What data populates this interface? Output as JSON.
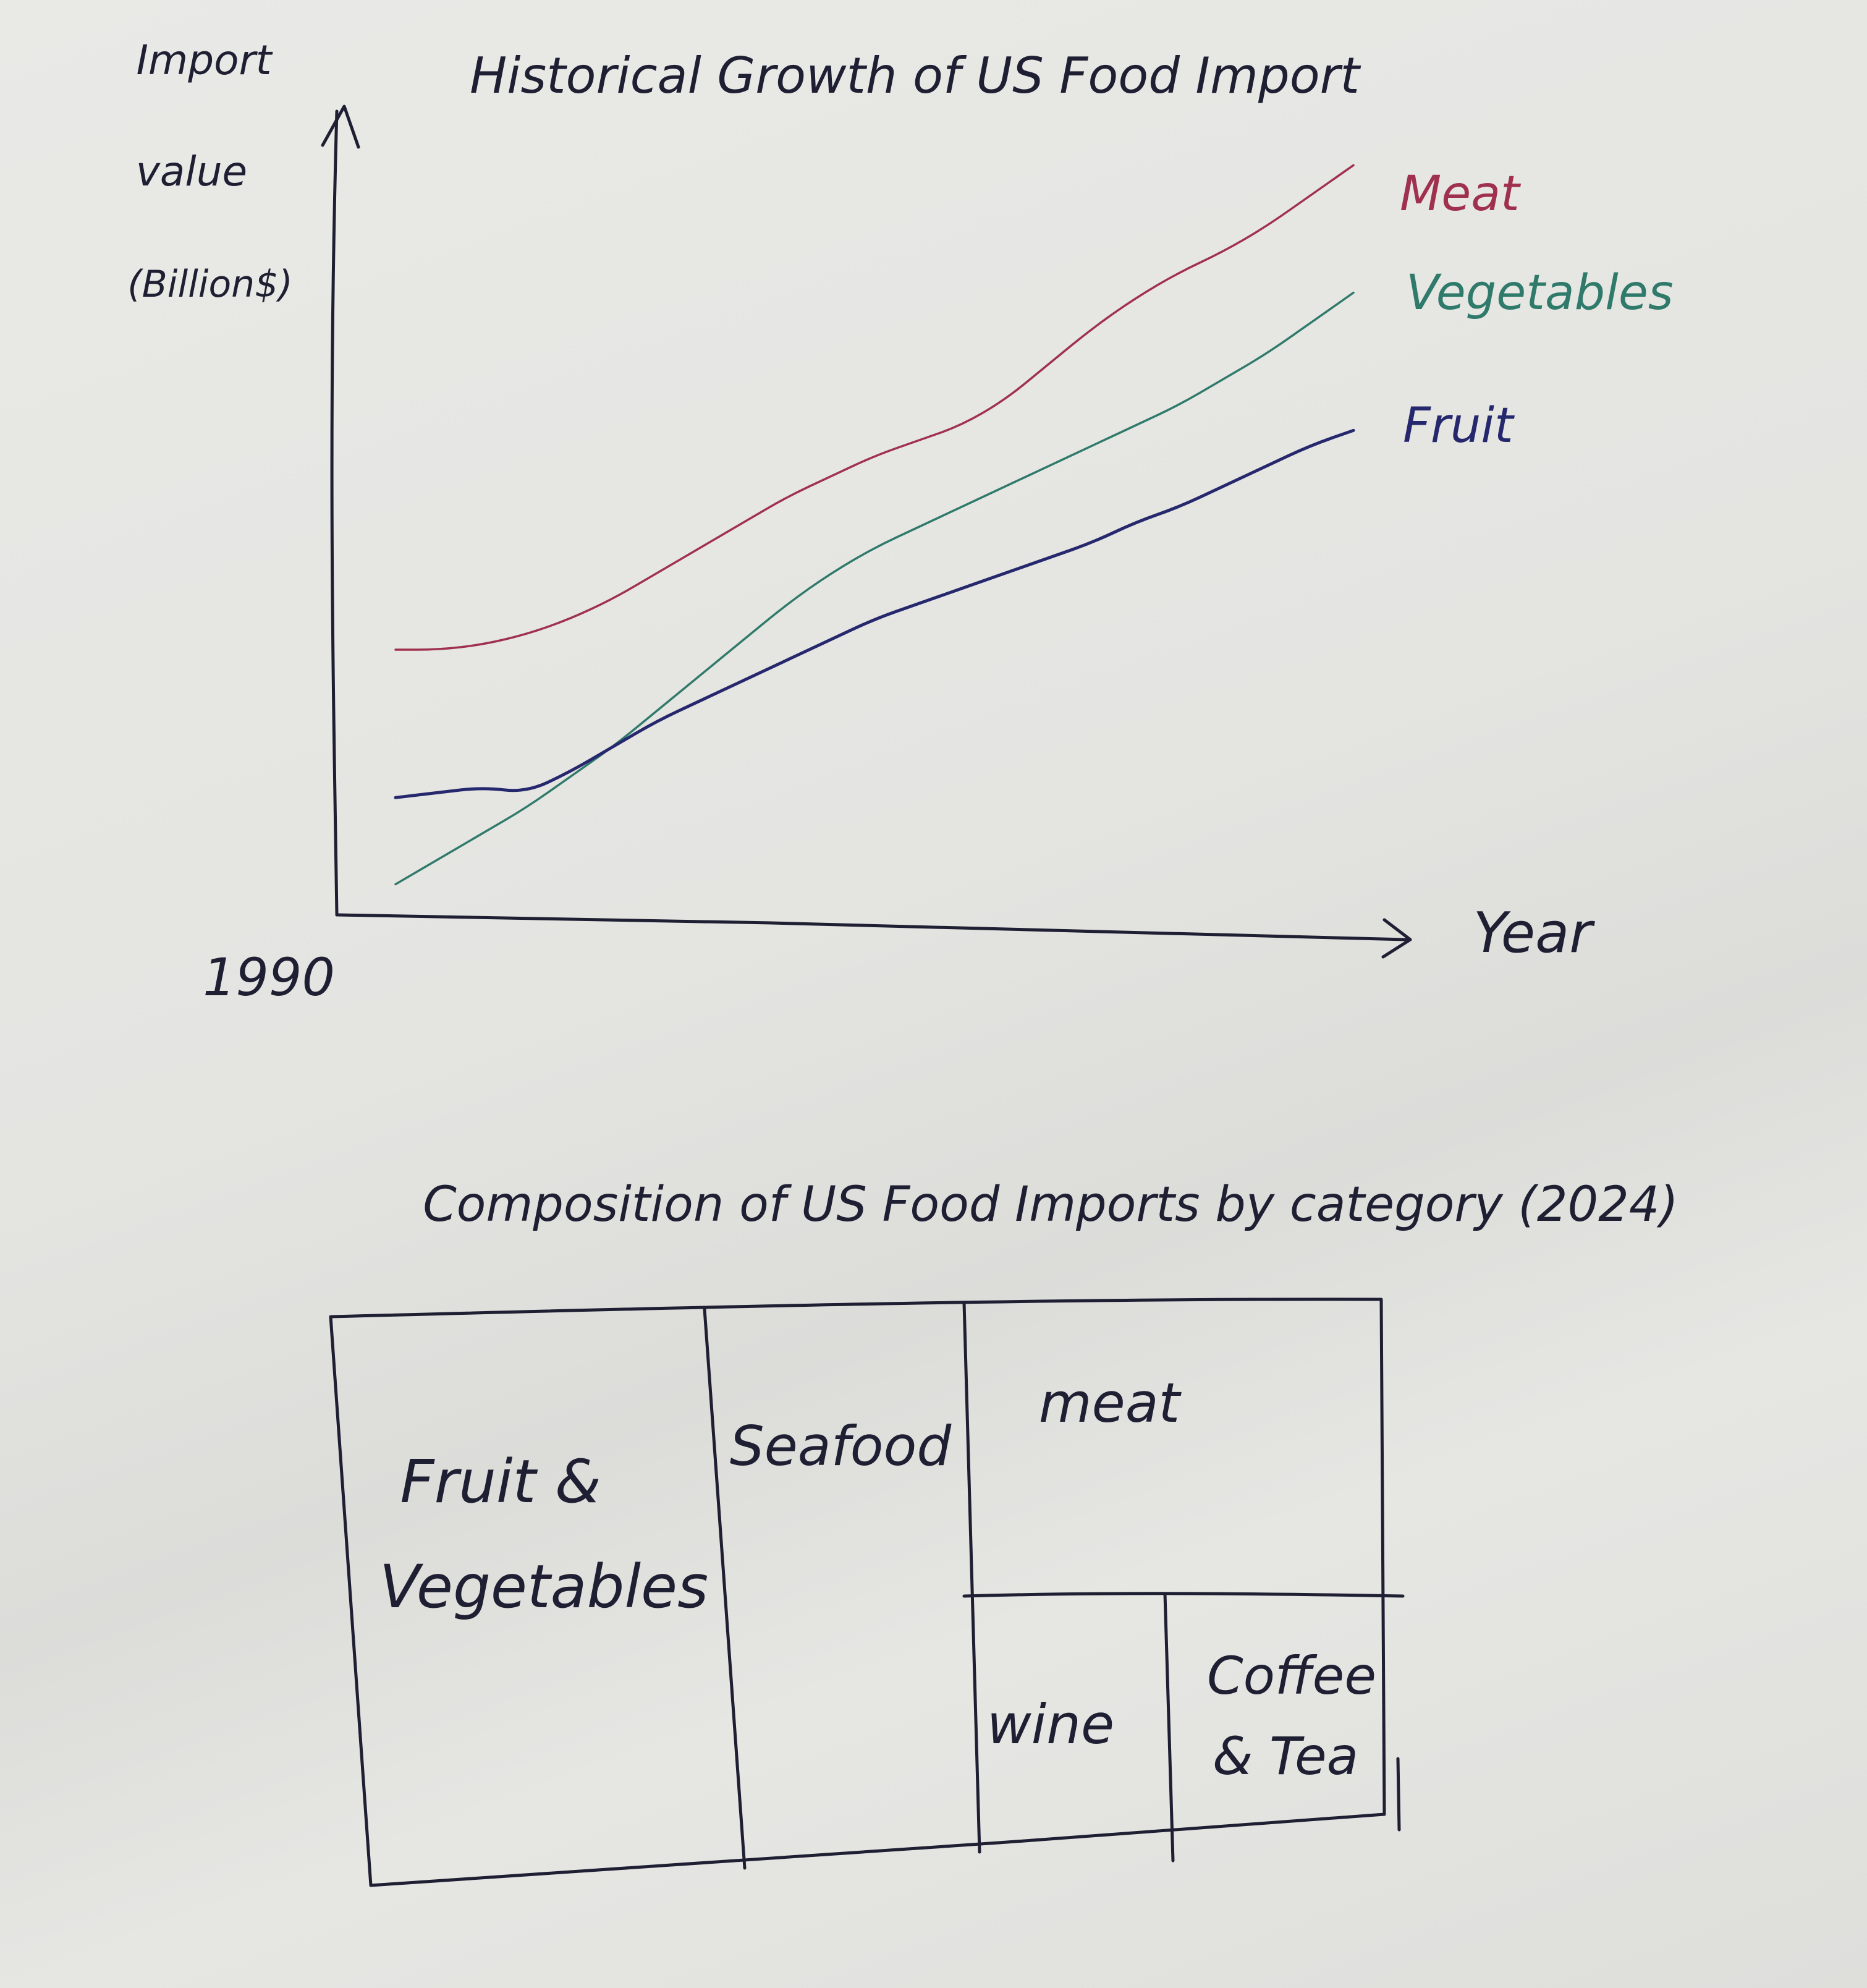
{
  "chart_data": [
    {
      "type": "line",
      "title": "Historical Growth of US Food Import",
      "ylabel": [
        "Import",
        "value",
        "(Billion$)"
      ],
      "xlabel": "Year",
      "x_start_label": "1990",
      "grid": false,
      "series": [
        {
          "name": "Meat",
          "color": "#a0314e",
          "values": [
            52,
            52,
            53,
            55,
            58,
            62,
            67,
            72,
            77,
            82,
            86,
            90,
            93,
            96,
            101,
            108,
            115,
            121,
            126,
            130,
            135,
            141,
            147
          ]
        },
        {
          "name": "Vegetables",
          "color": "#2f7a6a",
          "values": [
            6,
            11,
            16,
            21,
            27,
            33,
            40,
            47,
            54,
            61,
            67,
            72,
            76,
            80,
            84,
            88,
            92,
            96,
            100,
            105,
            110,
            116,
            122
          ]
        },
        {
          "name": "Fruit",
          "color": "#26286e",
          "values": [
            23,
            24,
            25,
            24,
            28,
            33,
            38,
            42,
            46,
            50,
            54,
            58,
            61,
            64,
            67,
            70,
            73,
            77,
            80,
            84,
            88,
            92,
            95
          ]
        }
      ]
    },
    {
      "type": "treemap",
      "title": "Composition of US Food Imports by category (2024)",
      "cells": [
        {
          "label": [
            "Fruit &",
            "Vegetables"
          ]
        },
        {
          "label": [
            "Seafood"
          ]
        },
        {
          "label": [
            "meat"
          ]
        },
        {
          "label": [
            "wine"
          ]
        },
        {
          "label": [
            "Coffee",
            "& Tea"
          ]
        }
      ]
    }
  ]
}
